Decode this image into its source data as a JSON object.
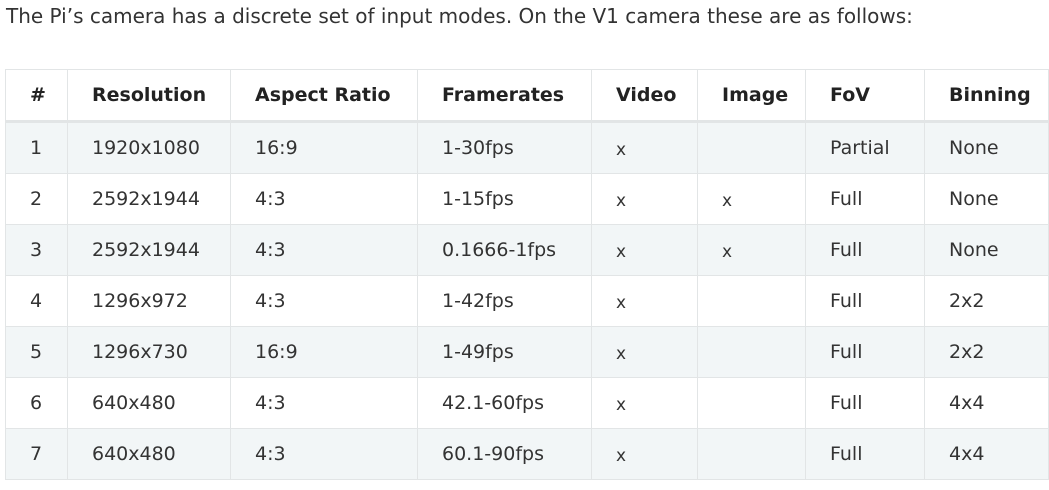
{
  "intro": "The Pi’s camera has a discrete set of input modes. On the V1 camera these are as follows:",
  "table": {
    "headers": [
      "#",
      "Resolution",
      "Aspect Ratio",
      "Framerates",
      "Video",
      "Image",
      "FoV",
      "Binning"
    ],
    "rows": [
      [
        "1",
        "1920x1080",
        "16:9",
        "1-30fps",
        "x",
        "",
        "Partial",
        "None"
      ],
      [
        "2",
        "2592x1944",
        "4:3",
        "1-15fps",
        "x",
        "x",
        "Full",
        "None"
      ],
      [
        "3",
        "2592x1944",
        "4:3",
        "0.1666-1fps",
        "x",
        "x",
        "Full",
        "None"
      ],
      [
        "4",
        "1296x972",
        "4:3",
        "1-42fps",
        "x",
        "",
        "Full",
        "2x2"
      ],
      [
        "5",
        "1296x730",
        "16:9",
        "1-49fps",
        "x",
        "",
        "Full",
        "2x2"
      ],
      [
        "6",
        "640x480",
        "4:3",
        "42.1-60fps",
        "x",
        "",
        "Full",
        "4x4"
      ],
      [
        "7",
        "640x480",
        "4:3",
        "60.1-90fps",
        "x",
        "",
        "Full",
        "4x4"
      ]
    ]
  }
}
